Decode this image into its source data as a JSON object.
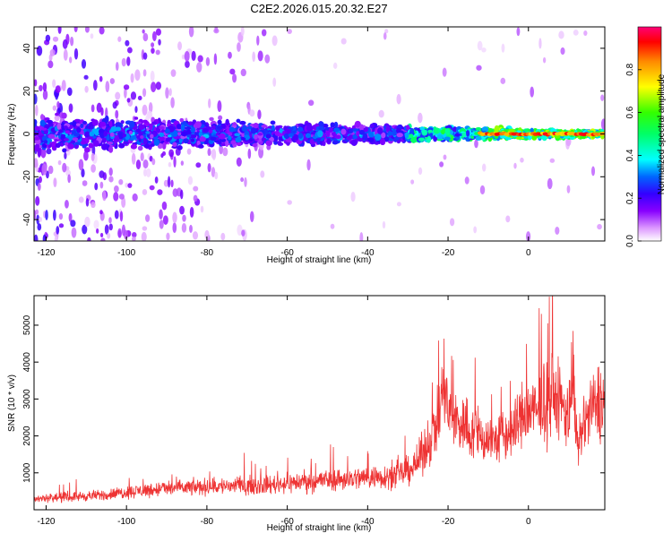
{
  "title": "C2E2.2026.015.20.32.E27",
  "chart_data": [
    {
      "type": "heatmap",
      "xlabel": "Height of straight line (km)",
      "ylabel": "Frequency (Hz)",
      "xlim": [
        -123,
        19
      ],
      "ylim": [
        -50,
        50
      ],
      "x_ticks": [
        -120,
        -100,
        -80,
        -60,
        -40,
        -20,
        0
      ],
      "y_ticks": [
        -40,
        -20,
        0,
        20,
        40
      ],
      "colorbar": {
        "label": "Normalized spectral amplitude",
        "range": [
          0,
          1
        ],
        "ticks": [
          0.0,
          0.2,
          0.4,
          0.6,
          0.8
        ],
        "tick_labels": [
          "0.0",
          "0.2",
          "0.4",
          "0.6",
          "0.8"
        ],
        "colors": [
          "#ffffff",
          "#cc66ff",
          "#5500ee",
          "#0033ff",
          "#00ffff",
          "#00ff00",
          "#ffff00",
          "#ff8800",
          "#ff0000",
          "#ff0066"
        ]
      },
      "description_values": {
        "signal_center_hz": 0,
        "narrowband_from_km": -20,
        "peak_amplitude": 0.95
      }
    },
    {
      "type": "line",
      "xlabel": "Height of straight line (km)",
      "ylabel": "SNR (10 * v/v)",
      "xlim": [
        -123,
        19
      ],
      "ylim": [
        0,
        5800
      ],
      "x_ticks": [
        -120,
        -100,
        -80,
        -60,
        -40,
        -20,
        0
      ],
      "y_ticks": [
        1000,
        2000,
        3000,
        4000,
        5000
      ],
      "color": "#ee3333",
      "series": [
        {
          "name": "SNR",
          "x": [
            -123,
            -120,
            -116,
            -112,
            -108,
            -104,
            -100,
            -96,
            -92,
            -88,
            -84,
            -80,
            -76,
            -72,
            -68,
            -64,
            -60,
            -56,
            -52,
            -48,
            -44,
            -40,
            -36,
            -32,
            -28,
            -25,
            -22,
            -21,
            -20,
            -18,
            -16,
            -14,
            -12,
            -10,
            -8,
            -6,
            -4,
            -2,
            0,
            2,
            4,
            6,
            8,
            10,
            11,
            12,
            14,
            16,
            18,
            19
          ],
          "y": [
            300,
            320,
            330,
            360,
            380,
            420,
            480,
            520,
            560,
            590,
            600,
            620,
            640,
            660,
            650,
            680,
            720,
            760,
            800,
            820,
            840,
            880,
            900,
            950,
            1200,
            1800,
            2600,
            3500,
            2600,
            2400,
            2300,
            2100,
            2000,
            1900,
            1900,
            2000,
            2100,
            2500,
            2700,
            2600,
            2900,
            3100,
            2900,
            2500,
            3900,
            1500,
            2400,
            2700,
            3000,
            2900
          ]
        }
      ]
    }
  ]
}
